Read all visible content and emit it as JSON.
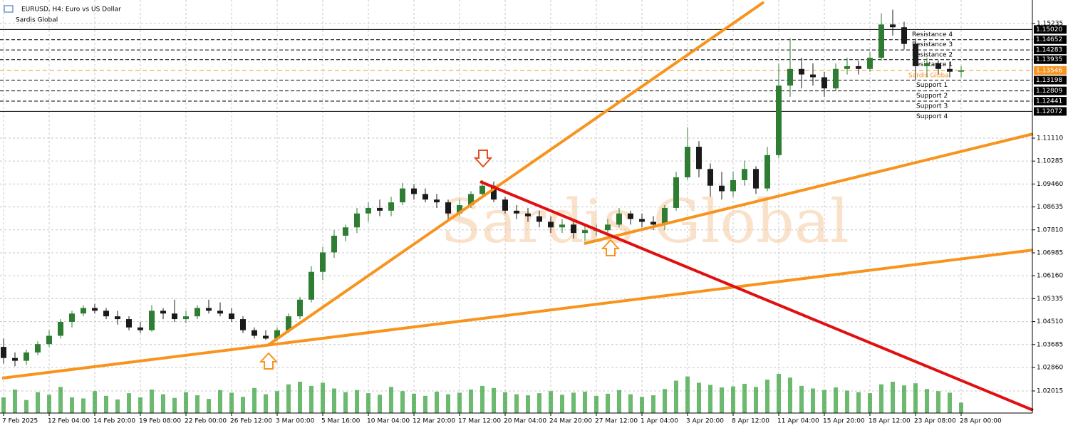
{
  "chart_data": {
    "type": "candlestick",
    "title": "EURUSD, H4:  Euro vs US Dollar",
    "subtitle": "Sardis Global",
    "watermark": "Sardis Global",
    "grid": true,
    "bull_color": "#2e7d32",
    "bear_color": "#1a1a1a",
    "volume_color": "#2e9d32",
    "ylim": [
      1.0122,
      1.1608
    ],
    "yticks": [
      1.15235,
      {
        "value": 1.1111,
        "label": "1.11110"
      },
      1.10285,
      {
        "value": 1.0946,
        "label": "1.09460"
      },
      1.08635,
      {
        "value": 1.0781,
        "label": "1.07810"
      },
      1.06985,
      {
        "value": 1.0616,
        "label": "1.06160"
      },
      1.05335,
      {
        "value": 1.0451,
        "label": "1.04510"
      },
      1.03685,
      {
        "value": 1.0286,
        "label": "1.02860"
      },
      1.02015
    ],
    "categories": [
      "7 Feb 2025",
      null,
      null,
      null,
      "12 Feb 04:00",
      null,
      null,
      null,
      "14 Feb 20:00",
      null,
      null,
      null,
      "19 Feb 08:00",
      null,
      null,
      null,
      "22 Feb 00:00",
      null,
      null,
      null,
      "26 Feb 12:00",
      null,
      null,
      null,
      "3 Mar 00:00",
      null,
      null,
      null,
      "5 Mar 16:00",
      null,
      null,
      null,
      "10 Mar 04:00",
      null,
      null,
      null,
      "12 Mar 20:00",
      null,
      null,
      null,
      "17 Mar 12:00",
      null,
      null,
      null,
      "20 Mar 04:00",
      null,
      null,
      null,
      "24 Mar 20:00",
      null,
      null,
      null,
      "27 Mar 12:00",
      null,
      null,
      null,
      "1 Apr 04:00",
      null,
      null,
      null,
      "3 Apr 20:00",
      null,
      null,
      null,
      "8 Apr 12:00",
      null,
      null,
      null,
      "11 Apr 04:00",
      null,
      null,
      null,
      "15 Apr 20:00",
      null,
      null,
      null,
      "18 Apr 12:00",
      null,
      null,
      null,
      "23 Apr 08:00",
      null,
      null,
      null,
      "28 Apr 00:00"
    ],
    "ohlc": [
      [
        1.036,
        1.039,
        1.03,
        1.032
      ],
      [
        1.032,
        1.034,
        1.029,
        1.031
      ],
      [
        1.031,
        1.035,
        1.0295,
        1.034
      ],
      [
        1.034,
        1.038,
        1.033,
        1.037
      ],
      [
        1.037,
        1.042,
        1.036,
        1.04
      ],
      [
        1.04,
        1.046,
        1.039,
        1.045
      ],
      [
        1.045,
        1.049,
        1.043,
        1.048
      ],
      [
        1.048,
        1.051,
        1.047,
        1.05
      ],
      [
        1.05,
        1.0515,
        1.048,
        1.049
      ],
      [
        1.049,
        1.05,
        1.046,
        1.047
      ],
      [
        1.047,
        1.049,
        1.044,
        1.046
      ],
      [
        1.046,
        1.047,
        1.042,
        1.043
      ],
      [
        1.043,
        1.045,
        1.041,
        1.042
      ],
      [
        1.042,
        1.051,
        1.0415,
        1.049
      ],
      [
        1.049,
        1.05,
        1.046,
        1.048
      ],
      [
        1.048,
        1.053,
        1.045,
        1.046
      ],
      [
        1.046,
        1.049,
        1.0445,
        1.047
      ],
      [
        1.047,
        1.051,
        1.046,
        1.05
      ],
      [
        1.05,
        1.053,
        1.048,
        1.049
      ],
      [
        1.049,
        1.052,
        1.047,
        1.048
      ],
      [
        1.048,
        1.05,
        1.045,
        1.046
      ],
      [
        1.046,
        1.047,
        1.041,
        1.042
      ],
      [
        1.042,
        1.043,
        1.039,
        1.04
      ],
      [
        1.04,
        1.042,
        1.0385,
        1.039
      ],
      [
        1.039,
        1.043,
        1.038,
        1.042
      ],
      [
        1.042,
        1.048,
        1.041,
        1.047
      ],
      [
        1.047,
        1.054,
        1.046,
        1.053
      ],
      [
        1.053,
        1.065,
        1.052,
        1.063
      ],
      [
        1.063,
        1.072,
        1.06,
        1.07
      ],
      [
        1.07,
        1.078,
        1.068,
        1.076
      ],
      [
        1.076,
        1.08,
        1.074,
        1.079
      ],
      [
        1.079,
        1.086,
        1.077,
        1.084
      ],
      [
        1.084,
        1.088,
        1.081,
        1.086
      ],
      [
        1.086,
        1.089,
        1.083,
        1.085
      ],
      [
        1.085,
        1.09,
        1.083,
        1.088
      ],
      [
        1.088,
        1.095,
        1.087,
        1.093
      ],
      [
        1.093,
        1.0945,
        1.089,
        1.091
      ],
      [
        1.091,
        1.093,
        1.088,
        1.089
      ],
      [
        1.089,
        1.091,
        1.086,
        1.088
      ],
      [
        1.088,
        1.089,
        1.082,
        1.084
      ],
      [
        1.084,
        1.089,
        1.083,
        1.087
      ],
      [
        1.087,
        1.092,
        1.086,
        1.091
      ],
      [
        1.091,
        1.096,
        1.09,
        1.094
      ],
      [
        1.094,
        1.0955,
        1.088,
        1.089
      ],
      [
        1.089,
        1.09,
        1.084,
        1.085
      ],
      [
        1.085,
        1.087,
        1.082,
        1.084
      ],
      [
        1.084,
        1.086,
        1.081,
        1.083
      ],
      [
        1.083,
        1.085,
        1.079,
        1.081
      ],
      [
        1.081,
        1.083,
        1.077,
        1.079
      ],
      [
        1.079,
        1.082,
        1.077,
        1.08
      ],
      [
        1.08,
        1.081,
        1.075,
        1.077
      ],
      [
        1.077,
        1.08,
        1.074,
        1.078
      ],
      [
        1.078,
        1.08,
        1.076,
        1.078
      ],
      [
        1.078,
        1.082,
        1.076,
        1.08
      ],
      [
        1.08,
        1.086,
        1.079,
        1.084
      ],
      [
        1.084,
        1.085,
        1.08,
        1.082
      ],
      [
        1.082,
        1.084,
        1.079,
        1.081
      ],
      [
        1.081,
        1.083,
        1.078,
        1.08
      ],
      [
        1.08,
        1.087,
        1.078,
        1.086
      ],
      [
        1.086,
        1.099,
        1.085,
        1.097
      ],
      [
        1.097,
        1.115,
        1.096,
        1.108
      ],
      [
        1.108,
        1.11,
        1.097,
        1.1
      ],
      [
        1.1,
        1.102,
        1.09,
        1.094
      ],
      [
        1.094,
        1.099,
        1.089,
        1.092
      ],
      [
        1.092,
        1.099,
        1.09,
        1.096
      ],
      [
        1.096,
        1.103,
        1.094,
        1.1
      ],
      [
        1.1,
        1.101,
        1.091,
        1.093
      ],
      [
        1.093,
        1.108,
        1.092,
        1.105
      ],
      [
        1.105,
        1.138,
        1.104,
        1.13
      ],
      [
        1.13,
        1.147,
        1.126,
        1.136
      ],
      [
        1.136,
        1.14,
        1.129,
        1.134
      ],
      [
        1.134,
        1.138,
        1.13,
        1.133
      ],
      [
        1.133,
        1.135,
        1.126,
        1.129
      ],
      [
        1.129,
        1.138,
        1.128,
        1.136
      ],
      [
        1.136,
        1.14,
        1.134,
        1.137
      ],
      [
        1.137,
        1.139,
        1.134,
        1.136
      ],
      [
        1.136,
        1.142,
        1.135,
        1.14
      ],
      [
        1.14,
        1.156,
        1.139,
        1.152
      ],
      [
        1.152,
        1.1573,
        1.148,
        1.151
      ],
      [
        1.151,
        1.153,
        1.143,
        1.145
      ],
      [
        1.145,
        1.147,
        1.132,
        1.137
      ],
      [
        1.137,
        1.14,
        1.133,
        1.138
      ],
      [
        1.138,
        1.139,
        1.134,
        1.136
      ],
      [
        1.136,
        1.1385,
        1.133,
        1.135
      ],
      [
        1.135,
        1.137,
        1.133,
        1.1355
      ]
    ],
    "volume": [
      30,
      45,
      25,
      40,
      35,
      50,
      30,
      28,
      42,
      33,
      26,
      38,
      30,
      45,
      36,
      29,
      40,
      34,
      27,
      44,
      39,
      31,
      48,
      36,
      42,
      55,
      60,
      52,
      58,
      47,
      40,
      44,
      38,
      35,
      50,
      42,
      37,
      33,
      41,
      36,
      39,
      45,
      52,
      48,
      40,
      36,
      34,
      38,
      42,
      35,
      39,
      41,
      33,
      37,
      44,
      36,
      31,
      34,
      46,
      62,
      70,
      58,
      54,
      49,
      51,
      56,
      50,
      64,
      75,
      68,
      52,
      47,
      44,
      49,
      43,
      40,
      38,
      55,
      60,
      53,
      57,
      46,
      42,
      39,
      20
    ],
    "levels": [
      {
        "name": "Resistance 4",
        "value": 1.1502,
        "value_label": "1.15020"
      },
      {
        "name": "Resistance 3",
        "value": 1.14652
      },
      {
        "name": "Resistance 2",
        "value": 1.14283
      },
      {
        "name": "Resistance 1",
        "value": 1.13935
      },
      {
        "name": "Support 1",
        "value": 1.13198
      },
      {
        "name": "Support 2",
        "value": 1.12809
      },
      {
        "name": "Support 3",
        "value": 1.12441
      },
      {
        "name": "Support 4",
        "value": 1.12072
      }
    ],
    "current": {
      "name": "Sardis Global",
      "value": 1.13546,
      "color": "#f7941d"
    }
  }
}
